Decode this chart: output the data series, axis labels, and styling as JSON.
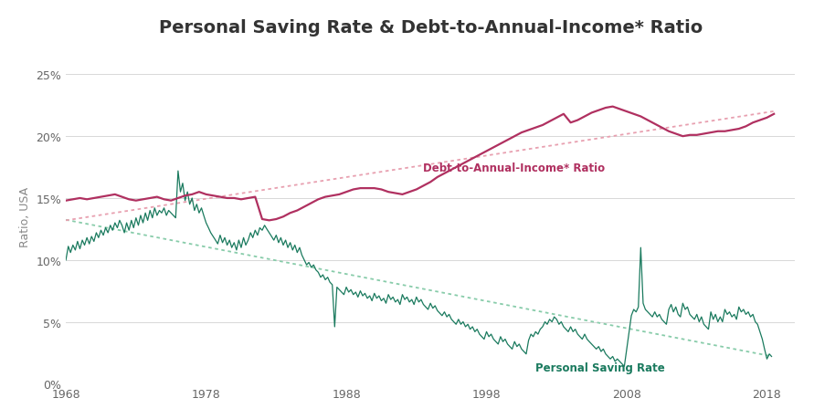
{
  "title": "Personal Saving Rate & Debt-to-Annual-Income* Ratio",
  "ylabel": "Ratio, USA",
  "xlim": [
    1968,
    2020
  ],
  "ylim": [
    0,
    0.27
  ],
  "yticks": [
    0,
    0.05,
    0.1,
    0.15,
    0.2,
    0.25
  ],
  "ytick_labels": [
    "0%",
    "5%",
    "10%",
    "15%",
    "20%",
    "25%"
  ],
  "xticks": [
    1968,
    1978,
    1988,
    1998,
    2008,
    2018
  ],
  "background_color": "#ffffff",
  "grid_color": "#d8d8d8",
  "debt_color": "#b03060",
  "saving_color": "#1a7a5e",
  "trend_debt_color": "#e8a0b0",
  "trend_saving_color": "#88ccaa",
  "debt_label": "Debt-to-Annual-Income* Ratio",
  "saving_label": "Personal Saving Rate",
  "title_fontsize": 14,
  "label_fontsize": 9,
  "saving_rate": [
    [
      1968.0,
      0.1
    ],
    [
      1968.17,
      0.111
    ],
    [
      1968.33,
      0.106
    ],
    [
      1968.5,
      0.112
    ],
    [
      1968.67,
      0.108
    ],
    [
      1968.83,
      0.115
    ],
    [
      1969.0,
      0.109
    ],
    [
      1969.17,
      0.116
    ],
    [
      1969.33,
      0.112
    ],
    [
      1969.5,
      0.118
    ],
    [
      1969.67,
      0.113
    ],
    [
      1969.83,
      0.119
    ],
    [
      1970.0,
      0.115
    ],
    [
      1970.17,
      0.122
    ],
    [
      1970.33,
      0.118
    ],
    [
      1970.5,
      0.124
    ],
    [
      1970.67,
      0.12
    ],
    [
      1970.83,
      0.126
    ],
    [
      1971.0,
      0.122
    ],
    [
      1971.17,
      0.128
    ],
    [
      1971.33,
      0.124
    ],
    [
      1971.5,
      0.13
    ],
    [
      1971.67,
      0.126
    ],
    [
      1971.83,
      0.132
    ],
    [
      1972.0,
      0.128
    ],
    [
      1972.17,
      0.122
    ],
    [
      1972.33,
      0.13
    ],
    [
      1972.5,
      0.124
    ],
    [
      1972.67,
      0.132
    ],
    [
      1972.83,
      0.126
    ],
    [
      1973.0,
      0.134
    ],
    [
      1973.17,
      0.128
    ],
    [
      1973.33,
      0.136
    ],
    [
      1973.5,
      0.13
    ],
    [
      1973.67,
      0.138
    ],
    [
      1973.83,
      0.132
    ],
    [
      1974.0,
      0.14
    ],
    [
      1974.17,
      0.134
    ],
    [
      1974.33,
      0.142
    ],
    [
      1974.5,
      0.136
    ],
    [
      1974.67,
      0.14
    ],
    [
      1974.83,
      0.138
    ],
    [
      1975.0,
      0.142
    ],
    [
      1975.17,
      0.136
    ],
    [
      1975.33,
      0.14
    ],
    [
      1975.5,
      0.138
    ],
    [
      1975.67,
      0.136
    ],
    [
      1975.83,
      0.134
    ],
    [
      1976.0,
      0.172
    ],
    [
      1976.17,
      0.155
    ],
    [
      1976.33,
      0.162
    ],
    [
      1976.5,
      0.148
    ],
    [
      1976.67,
      0.155
    ],
    [
      1976.83,
      0.145
    ],
    [
      1977.0,
      0.15
    ],
    [
      1977.17,
      0.14
    ],
    [
      1977.33,
      0.145
    ],
    [
      1977.5,
      0.138
    ],
    [
      1977.67,
      0.142
    ],
    [
      1977.83,
      0.136
    ],
    [
      1978.0,
      0.13
    ],
    [
      1978.17,
      0.126
    ],
    [
      1978.33,
      0.122
    ],
    [
      1978.5,
      0.119
    ],
    [
      1978.67,
      0.116
    ],
    [
      1978.83,
      0.113
    ],
    [
      1979.0,
      0.12
    ],
    [
      1979.17,
      0.114
    ],
    [
      1979.33,
      0.118
    ],
    [
      1979.5,
      0.112
    ],
    [
      1979.67,
      0.116
    ],
    [
      1979.83,
      0.11
    ],
    [
      1980.0,
      0.114
    ],
    [
      1980.17,
      0.108
    ],
    [
      1980.33,
      0.116
    ],
    [
      1980.5,
      0.11
    ],
    [
      1980.67,
      0.118
    ],
    [
      1980.83,
      0.112
    ],
    [
      1981.0,
      0.116
    ],
    [
      1981.17,
      0.122
    ],
    [
      1981.33,
      0.118
    ],
    [
      1981.5,
      0.124
    ],
    [
      1981.67,
      0.12
    ],
    [
      1981.83,
      0.126
    ],
    [
      1982.0,
      0.124
    ],
    [
      1982.17,
      0.128
    ],
    [
      1982.33,
      0.125
    ],
    [
      1982.5,
      0.122
    ],
    [
      1982.67,
      0.119
    ],
    [
      1982.83,
      0.116
    ],
    [
      1983.0,
      0.12
    ],
    [
      1983.17,
      0.114
    ],
    [
      1983.33,
      0.118
    ],
    [
      1983.5,
      0.112
    ],
    [
      1983.67,
      0.116
    ],
    [
      1983.83,
      0.11
    ],
    [
      1984.0,
      0.114
    ],
    [
      1984.17,
      0.108
    ],
    [
      1984.33,
      0.112
    ],
    [
      1984.5,
      0.106
    ],
    [
      1984.67,
      0.11
    ],
    [
      1984.83,
      0.104
    ],
    [
      1985.0,
      0.1
    ],
    [
      1985.17,
      0.096
    ],
    [
      1985.33,
      0.098
    ],
    [
      1985.5,
      0.094
    ],
    [
      1985.67,
      0.096
    ],
    [
      1985.83,
      0.092
    ],
    [
      1986.0,
      0.09
    ],
    [
      1986.17,
      0.086
    ],
    [
      1986.33,
      0.088
    ],
    [
      1986.5,
      0.084
    ],
    [
      1986.67,
      0.086
    ],
    [
      1986.83,
      0.082
    ],
    [
      1987.0,
      0.08
    ],
    [
      1987.17,
      0.046
    ],
    [
      1987.33,
      0.078
    ],
    [
      1987.5,
      0.076
    ],
    [
      1987.67,
      0.074
    ],
    [
      1987.83,
      0.072
    ],
    [
      1988.0,
      0.078
    ],
    [
      1988.17,
      0.074
    ],
    [
      1988.33,
      0.076
    ],
    [
      1988.5,
      0.072
    ],
    [
      1988.67,
      0.074
    ],
    [
      1988.83,
      0.07
    ],
    [
      1989.0,
      0.075
    ],
    [
      1989.17,
      0.071
    ],
    [
      1989.33,
      0.073
    ],
    [
      1989.5,
      0.069
    ],
    [
      1989.67,
      0.071
    ],
    [
      1989.83,
      0.067
    ],
    [
      1990.0,
      0.073
    ],
    [
      1990.17,
      0.069
    ],
    [
      1990.33,
      0.071
    ],
    [
      1990.5,
      0.067
    ],
    [
      1990.67,
      0.069
    ],
    [
      1990.83,
      0.065
    ],
    [
      1991.0,
      0.072
    ],
    [
      1991.17,
      0.068
    ],
    [
      1991.33,
      0.07
    ],
    [
      1991.5,
      0.066
    ],
    [
      1991.67,
      0.068
    ],
    [
      1991.83,
      0.064
    ],
    [
      1992.0,
      0.072
    ],
    [
      1992.17,
      0.068
    ],
    [
      1992.33,
      0.07
    ],
    [
      1992.5,
      0.066
    ],
    [
      1992.67,
      0.068
    ],
    [
      1992.83,
      0.064
    ],
    [
      1993.0,
      0.07
    ],
    [
      1993.17,
      0.066
    ],
    [
      1993.33,
      0.068
    ],
    [
      1993.5,
      0.064
    ],
    [
      1993.67,
      0.062
    ],
    [
      1993.83,
      0.06
    ],
    [
      1994.0,
      0.065
    ],
    [
      1994.17,
      0.061
    ],
    [
      1994.33,
      0.063
    ],
    [
      1994.5,
      0.059
    ],
    [
      1994.67,
      0.057
    ],
    [
      1994.83,
      0.055
    ],
    [
      1995.0,
      0.058
    ],
    [
      1995.17,
      0.054
    ],
    [
      1995.33,
      0.056
    ],
    [
      1995.5,
      0.052
    ],
    [
      1995.67,
      0.05
    ],
    [
      1995.83,
      0.048
    ],
    [
      1996.0,
      0.052
    ],
    [
      1996.17,
      0.048
    ],
    [
      1996.33,
      0.05
    ],
    [
      1996.5,
      0.046
    ],
    [
      1996.67,
      0.048
    ],
    [
      1996.83,
      0.044
    ],
    [
      1997.0,
      0.046
    ],
    [
      1997.17,
      0.042
    ],
    [
      1997.33,
      0.044
    ],
    [
      1997.5,
      0.04
    ],
    [
      1997.67,
      0.038
    ],
    [
      1997.83,
      0.036
    ],
    [
      1998.0,
      0.042
    ],
    [
      1998.17,
      0.038
    ],
    [
      1998.33,
      0.04
    ],
    [
      1998.5,
      0.036
    ],
    [
      1998.67,
      0.034
    ],
    [
      1998.83,
      0.032
    ],
    [
      1999.0,
      0.038
    ],
    [
      1999.17,
      0.034
    ],
    [
      1999.33,
      0.036
    ],
    [
      1999.5,
      0.032
    ],
    [
      1999.67,
      0.03
    ],
    [
      1999.83,
      0.028
    ],
    [
      2000.0,
      0.034
    ],
    [
      2000.17,
      0.03
    ],
    [
      2000.33,
      0.032
    ],
    [
      2000.5,
      0.028
    ],
    [
      2000.67,
      0.026
    ],
    [
      2000.83,
      0.024
    ],
    [
      2001.0,
      0.035
    ],
    [
      2001.17,
      0.04
    ],
    [
      2001.33,
      0.038
    ],
    [
      2001.5,
      0.042
    ],
    [
      2001.67,
      0.04
    ],
    [
      2001.83,
      0.044
    ],
    [
      2002.0,
      0.046
    ],
    [
      2002.17,
      0.05
    ],
    [
      2002.33,
      0.048
    ],
    [
      2002.5,
      0.052
    ],
    [
      2002.67,
      0.05
    ],
    [
      2002.83,
      0.054
    ],
    [
      2003.0,
      0.052
    ],
    [
      2003.17,
      0.048
    ],
    [
      2003.33,
      0.05
    ],
    [
      2003.5,
      0.046
    ],
    [
      2003.67,
      0.044
    ],
    [
      2003.83,
      0.042
    ],
    [
      2004.0,
      0.046
    ],
    [
      2004.17,
      0.042
    ],
    [
      2004.33,
      0.044
    ],
    [
      2004.5,
      0.04
    ],
    [
      2004.67,
      0.038
    ],
    [
      2004.83,
      0.036
    ],
    [
      2005.0,
      0.04
    ],
    [
      2005.17,
      0.036
    ],
    [
      2005.33,
      0.034
    ],
    [
      2005.5,
      0.032
    ],
    [
      2005.67,
      0.03
    ],
    [
      2005.83,
      0.028
    ],
    [
      2006.0,
      0.03
    ],
    [
      2006.17,
      0.026
    ],
    [
      2006.33,
      0.028
    ],
    [
      2006.5,
      0.024
    ],
    [
      2006.67,
      0.022
    ],
    [
      2006.83,
      0.02
    ],
    [
      2007.0,
      0.022
    ],
    [
      2007.17,
      0.018
    ],
    [
      2007.33,
      0.02
    ],
    [
      2007.5,
      0.018
    ],
    [
      2007.67,
      0.016
    ],
    [
      2007.83,
      0.014
    ],
    [
      2008.0,
      0.028
    ],
    [
      2008.17,
      0.042
    ],
    [
      2008.33,
      0.055
    ],
    [
      2008.5,
      0.06
    ],
    [
      2008.67,
      0.058
    ],
    [
      2008.83,
      0.062
    ],
    [
      2009.0,
      0.11
    ],
    [
      2009.17,
      0.065
    ],
    [
      2009.33,
      0.06
    ],
    [
      2009.5,
      0.058
    ],
    [
      2009.67,
      0.056
    ],
    [
      2009.83,
      0.054
    ],
    [
      2010.0,
      0.058
    ],
    [
      2010.17,
      0.054
    ],
    [
      2010.33,
      0.056
    ],
    [
      2010.5,
      0.052
    ],
    [
      2010.67,
      0.05
    ],
    [
      2010.83,
      0.048
    ],
    [
      2011.0,
      0.06
    ],
    [
      2011.17,
      0.064
    ],
    [
      2011.33,
      0.058
    ],
    [
      2011.5,
      0.062
    ],
    [
      2011.67,
      0.056
    ],
    [
      2011.83,
      0.054
    ],
    [
      2012.0,
      0.065
    ],
    [
      2012.17,
      0.06
    ],
    [
      2012.33,
      0.062
    ],
    [
      2012.5,
      0.056
    ],
    [
      2012.67,
      0.054
    ],
    [
      2012.83,
      0.052
    ],
    [
      2013.0,
      0.056
    ],
    [
      2013.17,
      0.05
    ],
    [
      2013.33,
      0.054
    ],
    [
      2013.5,
      0.048
    ],
    [
      2013.67,
      0.046
    ],
    [
      2013.83,
      0.044
    ],
    [
      2014.0,
      0.058
    ],
    [
      2014.17,
      0.052
    ],
    [
      2014.33,
      0.056
    ],
    [
      2014.5,
      0.05
    ],
    [
      2014.67,
      0.054
    ],
    [
      2014.83,
      0.05
    ],
    [
      2015.0,
      0.06
    ],
    [
      2015.17,
      0.056
    ],
    [
      2015.33,
      0.058
    ],
    [
      2015.5,
      0.054
    ],
    [
      2015.67,
      0.056
    ],
    [
      2015.83,
      0.052
    ],
    [
      2016.0,
      0.062
    ],
    [
      2016.17,
      0.058
    ],
    [
      2016.33,
      0.06
    ],
    [
      2016.5,
      0.056
    ],
    [
      2016.67,
      0.058
    ],
    [
      2016.83,
      0.054
    ],
    [
      2017.0,
      0.056
    ],
    [
      2017.17,
      0.05
    ],
    [
      2017.33,
      0.048
    ],
    [
      2017.5,
      0.042
    ],
    [
      2017.67,
      0.036
    ],
    [
      2017.83,
      0.028
    ],
    [
      2018.0,
      0.02
    ],
    [
      2018.17,
      0.024
    ],
    [
      2018.33,
      0.022
    ]
  ],
  "debt_ratio": [
    [
      1968.0,
      0.148
    ],
    [
      1968.5,
      0.149
    ],
    [
      1969.0,
      0.15
    ],
    [
      1969.5,
      0.149
    ],
    [
      1970.0,
      0.15
    ],
    [
      1970.5,
      0.151
    ],
    [
      1971.0,
      0.152
    ],
    [
      1971.5,
      0.153
    ],
    [
      1972.0,
      0.151
    ],
    [
      1972.5,
      0.149
    ],
    [
      1973.0,
      0.148
    ],
    [
      1973.5,
      0.149
    ],
    [
      1974.0,
      0.15
    ],
    [
      1974.5,
      0.151
    ],
    [
      1975.0,
      0.149
    ],
    [
      1975.5,
      0.148
    ],
    [
      1976.0,
      0.15
    ],
    [
      1976.5,
      0.152
    ],
    [
      1977.0,
      0.153
    ],
    [
      1977.5,
      0.155
    ],
    [
      1978.0,
      0.153
    ],
    [
      1978.5,
      0.152
    ],
    [
      1979.0,
      0.151
    ],
    [
      1979.5,
      0.15
    ],
    [
      1980.0,
      0.15
    ],
    [
      1980.5,
      0.149
    ],
    [
      1981.0,
      0.15
    ],
    [
      1981.5,
      0.151
    ],
    [
      1982.0,
      0.133
    ],
    [
      1982.5,
      0.132
    ],
    [
      1983.0,
      0.133
    ],
    [
      1983.5,
      0.135
    ],
    [
      1984.0,
      0.138
    ],
    [
      1984.5,
      0.14
    ],
    [
      1985.0,
      0.143
    ],
    [
      1985.5,
      0.146
    ],
    [
      1986.0,
      0.149
    ],
    [
      1986.5,
      0.151
    ],
    [
      1987.0,
      0.152
    ],
    [
      1987.5,
      0.153
    ],
    [
      1988.0,
      0.155
    ],
    [
      1988.5,
      0.157
    ],
    [
      1989.0,
      0.158
    ],
    [
      1989.5,
      0.158
    ],
    [
      1990.0,
      0.158
    ],
    [
      1990.5,
      0.157
    ],
    [
      1991.0,
      0.155
    ],
    [
      1991.5,
      0.154
    ],
    [
      1992.0,
      0.153
    ],
    [
      1992.5,
      0.155
    ],
    [
      1993.0,
      0.157
    ],
    [
      1993.5,
      0.16
    ],
    [
      1994.0,
      0.163
    ],
    [
      1994.5,
      0.167
    ],
    [
      1995.0,
      0.17
    ],
    [
      1995.5,
      0.173
    ],
    [
      1996.0,
      0.176
    ],
    [
      1996.5,
      0.179
    ],
    [
      1997.0,
      0.182
    ],
    [
      1997.5,
      0.185
    ],
    [
      1998.0,
      0.188
    ],
    [
      1998.5,
      0.191
    ],
    [
      1999.0,
      0.194
    ],
    [
      1999.5,
      0.197
    ],
    [
      2000.0,
      0.2
    ],
    [
      2000.5,
      0.203
    ],
    [
      2001.0,
      0.205
    ],
    [
      2001.5,
      0.207
    ],
    [
      2002.0,
      0.209
    ],
    [
      2002.5,
      0.212
    ],
    [
      2003.0,
      0.215
    ],
    [
      2003.5,
      0.218
    ],
    [
      2004.0,
      0.211
    ],
    [
      2004.5,
      0.213
    ],
    [
      2005.0,
      0.216
    ],
    [
      2005.5,
      0.219
    ],
    [
      2006.0,
      0.221
    ],
    [
      2006.5,
      0.223
    ],
    [
      2007.0,
      0.224
    ],
    [
      2007.5,
      0.222
    ],
    [
      2008.0,
      0.22
    ],
    [
      2008.5,
      0.218
    ],
    [
      2009.0,
      0.216
    ],
    [
      2009.5,
      0.213
    ],
    [
      2010.0,
      0.21
    ],
    [
      2010.5,
      0.207
    ],
    [
      2011.0,
      0.204
    ],
    [
      2011.5,
      0.202
    ],
    [
      2012.0,
      0.2
    ],
    [
      2012.5,
      0.201
    ],
    [
      2013.0,
      0.201
    ],
    [
      2013.5,
      0.202
    ],
    [
      2014.0,
      0.203
    ],
    [
      2014.5,
      0.204
    ],
    [
      2015.0,
      0.204
    ],
    [
      2015.5,
      0.205
    ],
    [
      2016.0,
      0.206
    ],
    [
      2016.5,
      0.208
    ],
    [
      2017.0,
      0.211
    ],
    [
      2017.5,
      0.213
    ],
    [
      2018.0,
      0.215
    ],
    [
      2018.5,
      0.218
    ]
  ]
}
